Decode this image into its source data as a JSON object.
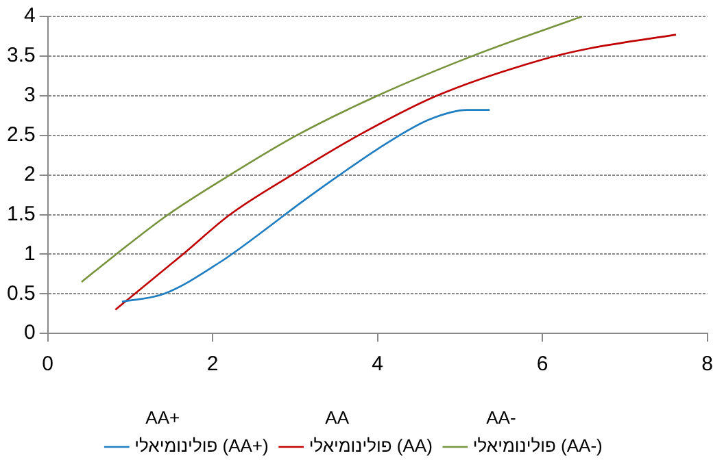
{
  "chart_data": {
    "type": "line",
    "xlim": [
      0,
      8
    ],
    "xticks": [
      0,
      2,
      4,
      6,
      8
    ],
    "ylim": [
      0,
      4
    ],
    "yticks": [
      0,
      0.5,
      1,
      1.5,
      2,
      2.5,
      3,
      3.5,
      4
    ],
    "grid": "y",
    "legend": "bottom",
    "marker": "none",
    "line_style": "solid",
    "annotations": [
      "AA+",
      "AA",
      "AA-"
    ],
    "series": [
      {
        "name": "פולינומיאלי (AA+)",
        "color": "#1f7dc1",
        "x": [
          0.9,
          1.41,
          2.09,
          2.56,
          3.07,
          3.54,
          4.11,
          4.63,
          5.09,
          5.36
        ],
        "values": [
          0.4,
          0.5,
          0.9,
          1.25,
          1.65,
          2.0,
          2.4,
          2.7,
          2.82,
          2.82
        ]
      },
      {
        "name": "פולינומיאלי (AA)",
        "color": "#c00000",
        "x": [
          0.82,
          1.64,
          2.21,
          2.96,
          3.77,
          4.72,
          5.98,
          6.59,
          7.62
        ],
        "values": [
          0.3,
          1.0,
          1.5,
          2.0,
          2.5,
          3.0,
          3.45,
          3.6,
          3.77
        ]
      },
      {
        "name": "פולינומיאלי (AA-)",
        "color": "#77933c",
        "x": [
          0.41,
          0.83,
          1.46,
          2.21,
          3.02,
          4.0,
          5.15,
          6.48
        ],
        "values": [
          0.65,
          1.0,
          1.5,
          2.0,
          2.5,
          3.0,
          3.5,
          4.0
        ]
      }
    ]
  }
}
